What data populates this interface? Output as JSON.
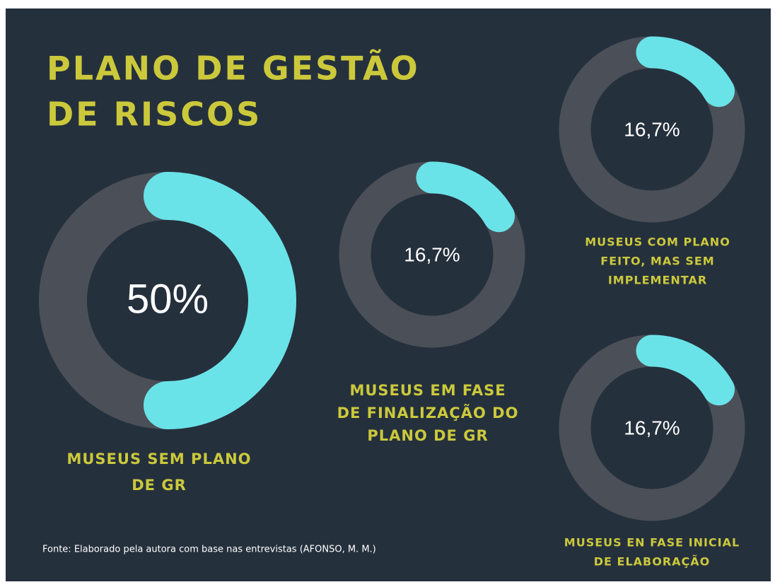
{
  "title": [
    "PLANO DE GESTÃO",
    "DE RISCOS"
  ],
  "source": "Fonte: Elaborado pela autora com base nas entrevistas (AFONSO, M. M.)",
  "chart_data": [
    {
      "type": "donut",
      "values": [
        50
      ],
      "value_labels": [
        "50%"
      ],
      "color": "#6ae3e8",
      "track_color": "#4b5058",
      "label": [
        "MUSEUS SEM PLANO",
        "DE GR"
      ]
    },
    {
      "type": "donut",
      "values": [
        16.7
      ],
      "value_labels": [
        "16,7%"
      ],
      "color": "#6ae3e8",
      "track_color": "#4b5058",
      "label": [
        "MUSEUS EM FASE",
        "DE FINALIZAÇÃO DO",
        "PLANO DE GR"
      ]
    },
    {
      "type": "donut",
      "values": [
        16.7
      ],
      "value_labels": [
        "16,7%"
      ],
      "color": "#6ae3e8",
      "track_color": "#4b5058",
      "label": [
        "MUSEUS COM PLANO",
        "FEITO, MAS SEM",
        "IMPLEMENTAR"
      ]
    },
    {
      "type": "donut",
      "values": [
        16.7
      ],
      "value_labels": [
        "16,7%"
      ],
      "color": "#6ae3e8",
      "track_color": "#4b5058",
      "label": [
        "MUSEUS EN FASE INICIAL",
        "DE ELABORAÇÃO"
      ]
    }
  ]
}
